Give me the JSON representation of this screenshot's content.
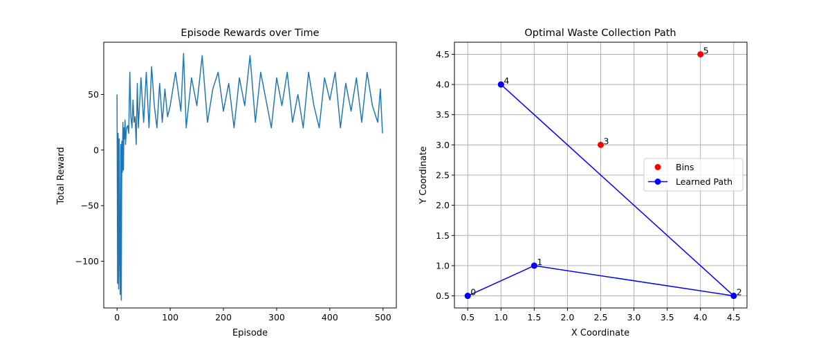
{
  "chart_data": [
    {
      "type": "line",
      "title": "Episode Rewards over Time",
      "xlabel": "Episode",
      "ylabel": "Total Reward",
      "xlim": [
        -25,
        525
      ],
      "ylim": [
        -142,
        97
      ],
      "xticks": [
        0,
        100,
        200,
        300,
        400,
        500
      ],
      "xtick_labels": [
        "0",
        "100",
        "200",
        "300",
        "400",
        "500"
      ],
      "yticks": [
        -100,
        -50,
        0,
        50
      ],
      "ytick_labels": [
        "−100",
        "−50",
        "0",
        "50"
      ],
      "grid": false,
      "color": "#1f77b4",
      "series": [
        {
          "x": [
            0,
            1,
            2,
            3,
            4,
            5,
            6,
            7,
            8,
            9,
            10,
            11,
            12,
            13,
            14,
            15,
            16,
            17,
            18,
            20,
            22,
            24,
            26,
            28,
            30,
            32,
            34,
            36,
            38,
            40,
            45,
            50,
            55,
            60,
            65,
            70,
            75,
            80,
            85,
            90,
            95,
            100,
            110,
            120,
            125,
            130,
            140,
            150,
            160,
            170,
            180,
            190,
            200,
            210,
            220,
            230,
            240,
            250,
            260,
            270,
            280,
            290,
            300,
            310,
            320,
            330,
            340,
            350,
            360,
            370,
            380,
            390,
            400,
            410,
            420,
            430,
            440,
            450,
            460,
            470,
            480,
            490,
            495,
            499
          ],
          "y": [
            50,
            -120,
            15,
            -125,
            10,
            -100,
            -130,
            5,
            -135,
            8,
            -20,
            25,
            -18,
            20,
            10,
            27,
            5,
            15,
            20,
            22,
            15,
            70,
            30,
            20,
            45,
            25,
            30,
            5,
            60,
            20,
            65,
            25,
            70,
            20,
            75,
            40,
            20,
            60,
            25,
            55,
            30,
            40,
            70,
            35,
            87,
            20,
            65,
            40,
            85,
            25,
            55,
            70,
            35,
            60,
            20,
            65,
            40,
            85,
            25,
            70,
            45,
            20,
            65,
            40,
            70,
            25,
            50,
            20,
            70,
            40,
            20,
            65,
            45,
            70,
            20,
            60,
            35,
            65,
            25,
            70,
            40,
            25,
            55,
            15
          ]
        }
      ]
    },
    {
      "type": "scatter",
      "title": "Optimal Waste Collection Path",
      "xlabel": "X Coordinate",
      "ylabel": "Y Coordinate",
      "xlim": [
        0.3,
        4.7
      ],
      "ylim": [
        0.3,
        4.7
      ],
      "xticks": [
        0.5,
        1.0,
        1.5,
        2.0,
        2.5,
        3.0,
        3.5,
        4.0,
        4.5
      ],
      "xtick_labels": [
        "0.5",
        "1.0",
        "1.5",
        "2.0",
        "2.5",
        "3.0",
        "3.5",
        "4.0",
        "4.5"
      ],
      "yticks": [
        0.5,
        1.0,
        1.5,
        2.0,
        2.5,
        3.0,
        3.5,
        4.0,
        4.5
      ],
      "ytick_labels": [
        "0.5",
        "1.0",
        "1.5",
        "2.0",
        "2.5",
        "3.0",
        "3.5",
        "4.0",
        "4.5"
      ],
      "grid": true,
      "legend_position": "right",
      "bins": {
        "name": "Bins",
        "color": "#ff0000",
        "points": [
          {
            "x": 0.5,
            "y": 0.5,
            "label": "0"
          },
          {
            "x": 1.5,
            "y": 1.0,
            "label": "1"
          },
          {
            "x": 4.5,
            "y": 0.5,
            "label": "2"
          },
          {
            "x": 2.5,
            "y": 3.0,
            "label": "3"
          },
          {
            "x": 1.0,
            "y": 4.0,
            "label": "4"
          },
          {
            "x": 4.0,
            "y": 4.5,
            "label": "5"
          }
        ]
      },
      "path": {
        "name": "Learned Path",
        "color": "#0000ff",
        "points": [
          {
            "x": 0.5,
            "y": 0.5
          },
          {
            "x": 1.5,
            "y": 1.0
          },
          {
            "x": 4.5,
            "y": 0.5
          },
          {
            "x": 1.0,
            "y": 4.0
          }
        ]
      }
    }
  ]
}
